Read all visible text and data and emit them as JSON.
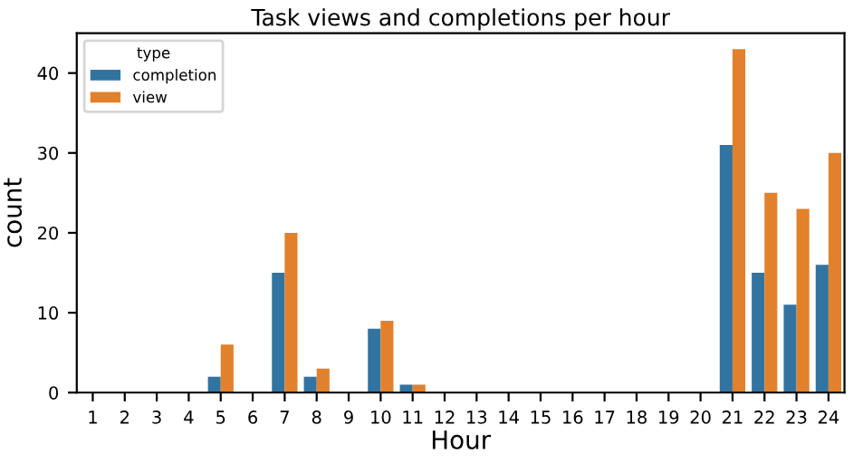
{
  "chart_data": {
    "type": "bar",
    "title": "Task views and completions per hour",
    "xlabel": "Hour",
    "ylabel": "count",
    "legend_title": "type",
    "categories": [
      "1",
      "2",
      "3",
      "4",
      "5",
      "6",
      "7",
      "8",
      "9",
      "10",
      "11",
      "12",
      "13",
      "14",
      "15",
      "16",
      "17",
      "18",
      "19",
      "20",
      "21",
      "22",
      "23",
      "24"
    ],
    "series": [
      {
        "name": "completion",
        "color": "#3274a1",
        "values": [
          0,
          0,
          0,
          0,
          2,
          0,
          15,
          2,
          0,
          8,
          1,
          0,
          0,
          0,
          0,
          0,
          0,
          0,
          0,
          0,
          31,
          15,
          11,
          16
        ]
      },
      {
        "name": "view",
        "color": "#e1812c",
        "values": [
          0,
          0,
          0,
          0,
          6,
          0,
          20,
          3,
          0,
          9,
          1,
          0,
          0,
          0,
          0,
          0,
          0,
          0,
          0,
          0,
          43,
          25,
          23,
          30
        ]
      }
    ],
    "ylim": [
      0,
      45
    ],
    "yticks": [
      0,
      10,
      20,
      30,
      40
    ],
    "grid": false,
    "legend": "top left"
  }
}
